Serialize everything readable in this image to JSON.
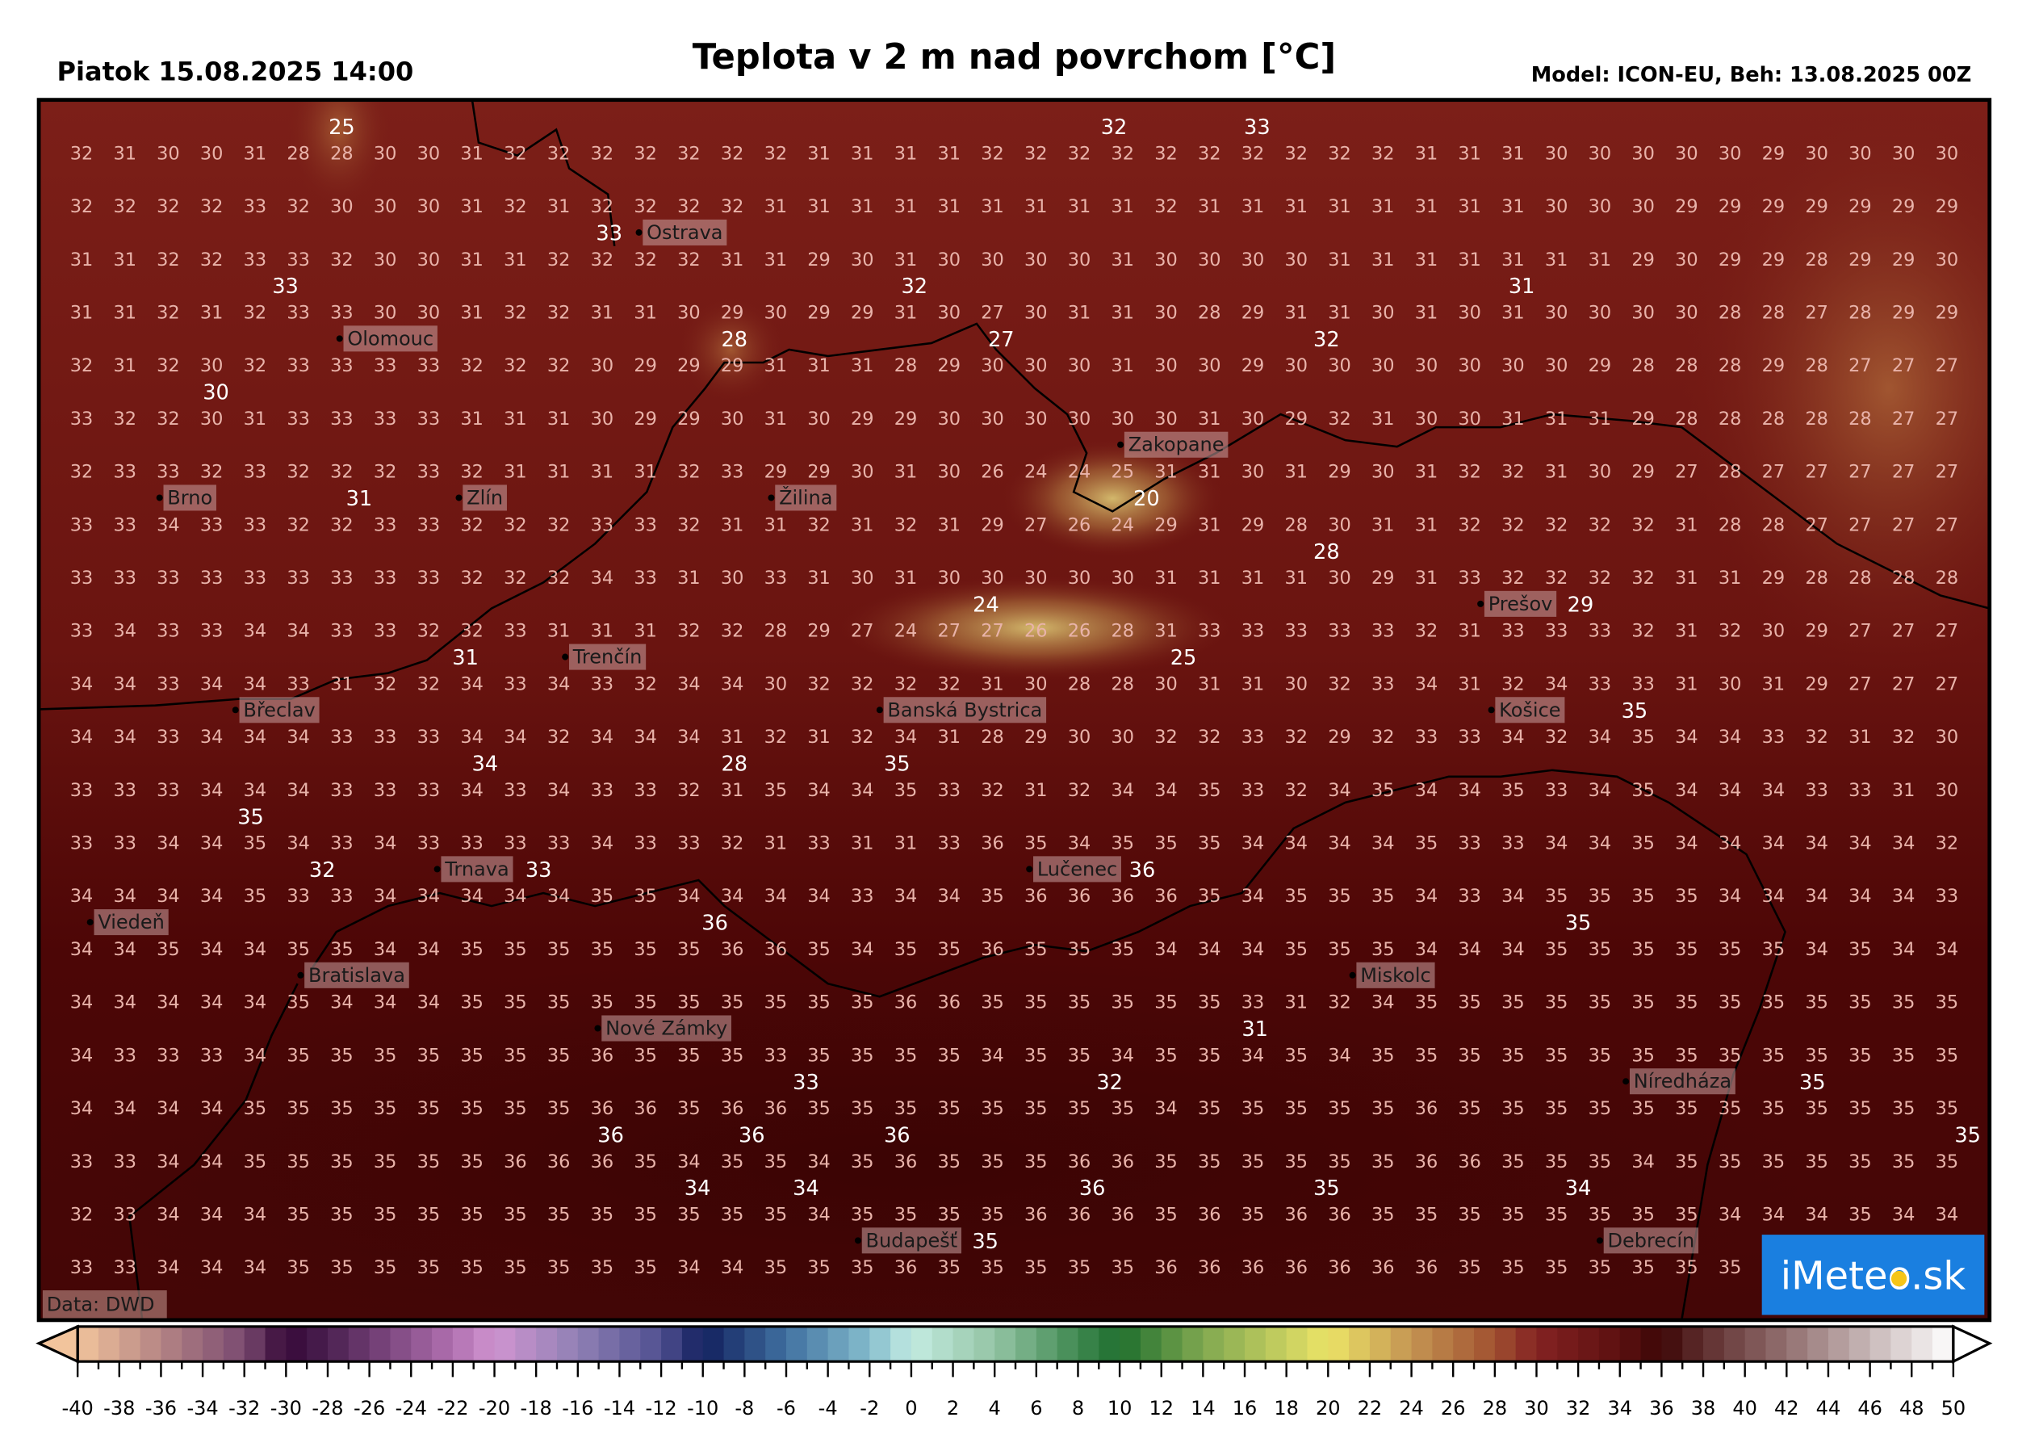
{
  "header": {
    "date_label": "Piatok 15.08.2025 14:00",
    "title": "Teplota v 2 m nad povrchom [°C]",
    "model_label": "Model: ICON-EU, Beh: 13.08.2025 00Z"
  },
  "source_label": "Data: DWD",
  "logo": {
    "text": "iMeteo.sk",
    "color": "#1a7fe0"
  },
  "colors": {
    "map_base": "#6a1212",
    "grid_text": "#e9b3aa",
    "highlight_text": "#ffffff"
  },
  "grid_rows": [
    "32 31 30 30 31 28 28 30 30 31 32 32 32 32 32 32 32 31 31 31 31 32 32 32 32 32 32 32 32 32 32 31 31 31 30 30 30 30 30 29 30 30 30 30",
    "32 32 32 32 33 32 30 30 30 31 32 31 32 32 32 32 31 31 31 31 31 31 31 31 31 32 31 31 31 31 31 31 31 31 30 30 30 29 29 29 29 29 29 29",
    "31 31 32 32 33 33 32 30 30 31 31 32 32 32 32 31 31 29 30 31 30 30 30 30 31 30 30 30 30 31 31 31 31 31 31 31 29 30 29 29 28 29 29 30",
    "31 31 32 31 32 33 33 30 30 31 32 32 31 31 30 29 30 29 29 31 30 27 30 31 31 30 28 29 31 31 30 31 30 31 30 30 30 30 28 28 27 28 29 29",
    "32 31 32 30 32 33 33 33 33 32 32 32 30 29 29 29 31 31 31 28 29 30 30 30 31 30 30 29 30 30 30 30 30 30 30 29 28 28 28 29 28 27 27 27",
    "33 32 32 30 31 33 33 33 33 31 31 31 30 29 29 30 31 30 29 29 30 30 30 30 30 30 31 30 29 32 31 30 30 31 31 31 29 28 28 28 28 28 27 27",
    "32 33 33 32 33 32 32 32 33 32 31 31 31 31 32 33 29 29 30 31 30 26 24 24 25 31 31 30 31 29 30 31 32 32 31 30 29 27 28 27 27 27 27 27",
    "33 33 34 33 33 32 32 33 33 32 32 32 33 33 32 31 31 32 31 32 31 29 27 26 24 29 31 29 28 30 31 31 32 32 32 32 32 31 28 28 27 27 27 27",
    "33 33 33 33 33 33 33 33 33 32 32 32 34 33 31 30 33 31 30 31 30 30 30 30 30 31 31 31 31 30 29 31 33 32 32 32 32 31 31 29 28 28 28 28",
    "33 34 33 33 34 34 33 33 32 32 33 31 31 31 32 32 28 29 27 24 27 27 26 26 28 31 33 33 33 33 33 32 31 33 33 33 32 31 32 30 29 27 27 27",
    "34 34 33 34 34 33 31 32 32 34 33 34 33 32 34 34 30 32 32 32 32 31 30 28 28 30 31 31 30 32 33 34 31 32 34 33 33 31 30 31 29 27 27 27",
    "34 34 33 34 34 34 33 33 33 34 34 32 34 34 34 31 32 31 32 34 31 28 29 30 30 32 32 33 32 29 32 33 33 34 32 34 35 34 34 33 32 31 32 30",
    "33 33 33 34 34 34 33 33 33 34 33 34 33 33 32 31 35 34 34 35 33 32 31 32 34 34 35 33 32 34 35 34 34 35 33 34 35 34 34 34 33 33 31 30",
    "33 33 34 34 35 34 33 34 33 33 33 33 34 33 33 32 31 33 31 31 33 36 35 34 35 35 35 34 34 34 34 35 33 33 34 34 35 34 34 34 34 34 34 32",
    "34 34 34 34 35 33 33 34 34 34 34 34 35 35 34 34 34 34 33 34 34 35 36 36 36 36 35 34 35 35 35 34 33 34 35 35 35 35 34 34 34 34 34 33",
    "34 34 35 34 34 35 35 34 34 35 35 35 35 35 35 36 36 35 34 35 35 36 35 35 35 34 34 34 35 35 35 34 34 34 35 35 35 35 35 35 34 35 34 34",
    "34 34 34 34 34 35 34 34 34 35 35 35 35 35 35 35 35 35 35 36 36 35 35 35 35 35 35 33 31 32 34 35 35 35 35 35 35 35 35 35 35 35 35 35",
    "34 33 33 33 34 35 35 35 35 35 35 35 36 35 35 35 33 35 35 35 35 34 35 35 34 35 35 34 35 34 35 35 35 35 35 35 35 35 35 35 35 35 35 35",
    "34 34 34 34 35 35 35 35 35 35 35 35 36 36 35 36 36 35 35 35 35 35 35 35 35 34 35 35 35 35 35 36 35 35 35 35 35 35 35 35 35 35 35 35",
    "33 33 34 34 35 35 35 35 35 35 36 36 36 35 34 35 35 34 35 36 35 35 35 36 36 35 35 35 35 35 35 36 36 35 35 35 34 35 35 35 35 35 35 35",
    "32 33 34 34 34 35 35 35 35 35 35 35 35 35 35 35 35 34 35 35 35 35 36 36 36 35 36 35 36 36 35 35 35 35 35 35 35 35 34 34 34 35 34 34",
    "33 33 34 34 34 35 35 35 35 35 35 35 35 35 34 34 35 35 35 36 35 35 35 35 35 36 36 36 36 36 36 36 35 35 35 35 35 35 35"
  ],
  "highlights": [
    {
      "v": "25",
      "c": 6,
      "r": -0.5
    },
    {
      "v": "32",
      "c": 23.8,
      "r": -0.5
    },
    {
      "v": "33",
      "c": 27.1,
      "r": -0.5
    },
    {
      "v": "33",
      "c": 13,
      "r": 1.6
    },
    {
      "v": "33",
      "c": 4.7,
      "r": 2.1
    },
    {
      "v": "32",
      "c": 19.2,
      "r": 2.6
    },
    {
      "v": "27",
      "c": 21.2,
      "r": 3.1
    },
    {
      "v": "31",
      "c": 33.2,
      "r": 2.1
    },
    {
      "v": "28",
      "c": 15.05,
      "r": 3.65
    },
    {
      "v": "32",
      "c": 28.7,
      "r": 3.65
    },
    {
      "v": "30",
      "c": 3.1,
      "r": 4.7
    },
    {
      "v": "31",
      "c": 6.4,
      "r": 6.78
    },
    {
      "v": "20",
      "c": 24.55,
      "r": 6.78
    },
    {
      "v": "28",
      "c": 28.7,
      "r": 7.3
    },
    {
      "v": "29",
      "c": 33.6,
      "r": 8.85
    },
    {
      "v": "24",
      "c": 20.85,
      "r": 8.85
    },
    {
      "v": "25",
      "c": 25.4,
      "r": 9.35
    },
    {
      "v": "31",
      "c": 8.85,
      "r": 9.35
    },
    {
      "v": "28",
      "c": 15.05,
      "r": 11.4
    },
    {
      "v": "34",
      "c": 9.3,
      "r": 11.9
    },
    {
      "v": "35",
      "c": 18.8,
      "r": 11.9
    },
    {
      "v": "35",
      "c": 35.8,
      "r": 10.9
    },
    {
      "v": "35",
      "c": 3.9,
      "r": 12.95
    },
    {
      "v": "33",
      "c": 9.7,
      "r": 13.45
    },
    {
      "v": "32",
      "c": 5.55,
      "r": 13.95
    },
    {
      "v": "36",
      "c": 22.9,
      "r": 13.95
    },
    {
      "v": "36",
      "c": 14.6,
      "r": 14.5
    },
    {
      "v": "35",
      "c": 34.5,
      "r": 14.5
    },
    {
      "v": "31",
      "c": 27.05,
      "r": 16
    },
    {
      "v": "33",
      "c": 16.7,
      "r": 17
    },
    {
      "v": "32",
      "c": 23.7,
      "r": 17.5
    },
    {
      "v": "35",
      "c": 39.9,
      "r": 17.5
    },
    {
      "v": "36",
      "c": 12.2,
      "r": 18
    },
    {
      "v": "36",
      "c": 15.45,
      "r": 18
    },
    {
      "v": "35",
      "c": 43.6,
      "r": 18
    },
    {
      "v": "36",
      "c": 18.8,
      "r": 18.5
    },
    {
      "v": "34",
      "c": 14.2,
      "r": 19
    },
    {
      "v": "34",
      "c": 16.7,
      "r": 19
    },
    {
      "v": "34",
      "c": 34.5,
      "r": 19
    },
    {
      "v": "36",
      "c": 23.3,
      "r": 19.5
    },
    {
      "v": "35",
      "c": 28.7,
      "r": 19.5
    },
    {
      "v": "35",
      "c": 20,
      "r": 20.5
    }
  ],
  "cities": [
    {
      "name": "Ostrava",
      "c": 12.85,
      "r": 1.2
    },
    {
      "name": "Olomouc",
      "c": 5.95,
      "r": 3.2
    },
    {
      "name": "Brno",
      "c": 1.8,
      "r": 6.5
    },
    {
      "name": "Zlín",
      "c": 8.7,
      "r": 6.45
    },
    {
      "name": "Žilina",
      "c": 15.9,
      "r": 6.2
    },
    {
      "name": "Zakopane",
      "c": 23.95,
      "r": 5.7
    },
    {
      "name": "Prešov",
      "c": 32.25,
      "r": 8.2
    },
    {
      "name": "Trenčín",
      "c": 11.15,
      "r": 9.25
    },
    {
      "name": "Břeclav",
      "c": 3.55,
      "r": 10.4
    },
    {
      "name": "Banská Bystrica",
      "c": 18.4,
      "r": 10.4
    },
    {
      "name": "Košice",
      "c": 32.5,
      "r": 10.6
    },
    {
      "name": "Trnava",
      "c": 8.2,
      "r": 13.1
    },
    {
      "name": "Lučenec",
      "c": 21.85,
      "r": 13.5
    },
    {
      "name": "Viedeň",
      "c": 0.2,
      "r": 14.8
    },
    {
      "name": "Bratislava",
      "c": 5.05,
      "r": 15.3
    },
    {
      "name": "Miskolc",
      "c": 29.3,
      "r": 15.65
    },
    {
      "name": "Nové Zámky",
      "c": 11.9,
      "r": 16.55
    },
    {
      "name": "Níredháza",
      "c": 35.6,
      "r": 17.05
    },
    {
      "name": "Budapešť",
      "c": 17.9,
      "r": 20.45
    },
    {
      "name": "Debrecín",
      "c": 35,
      "r": 20.25
    }
  ],
  "colorbar": {
    "min": -40,
    "max": 50,
    "tick_labels": [
      "-40",
      "-38",
      "-36",
      "-34",
      "-32",
      "-30",
      "-28",
      "-26",
      "-24",
      "-22",
      "-20",
      "-18",
      "-16",
      "-14",
      "-12",
      "-10",
      "-8",
      "-6",
      "-4",
      "-2",
      "0",
      "2",
      "4",
      "6",
      "8",
      "10",
      "12",
      "14",
      "16",
      "18",
      "20",
      "22",
      "24",
      "26",
      "28",
      "30",
      "32",
      "34",
      "36",
      "38",
      "40",
      "42",
      "44",
      "46",
      "48",
      "50"
    ],
    "stops": [
      [
        -40,
        "#f2c49c"
      ],
      [
        -36,
        "#b48484"
      ],
      [
        -32,
        "#7a4a70"
      ],
      [
        -30,
        "#360838"
      ],
      [
        -28,
        "#4a2050"
      ],
      [
        -22,
        "#b070b0"
      ],
      [
        -20,
        "#d094d0"
      ],
      [
        -16,
        "#9080b4"
      ],
      [
        -12,
        "#505090"
      ],
      [
        -10,
        "#12205e"
      ],
      [
        -6,
        "#4070a0"
      ],
      [
        -2,
        "#84bccc"
      ],
      [
        0,
        "#c4ece2"
      ],
      [
        4,
        "#94c4a4"
      ],
      [
        8,
        "#3f8850"
      ],
      [
        10,
        "#1f6f2e"
      ],
      [
        14,
        "#80a850"
      ],
      [
        18,
        "#c8d060"
      ],
      [
        20,
        "#ece466"
      ],
      [
        24,
        "#c49452"
      ],
      [
        28,
        "#a05030"
      ],
      [
        30,
        "#842222"
      ],
      [
        34,
        "#5c1010"
      ],
      [
        36,
        "#3c0606"
      ],
      [
        38,
        "#5e2e2e"
      ],
      [
        42,
        "#927070"
      ],
      [
        46,
        "#c8b8b8"
      ],
      [
        50,
        "#ffffff"
      ]
    ]
  }
}
